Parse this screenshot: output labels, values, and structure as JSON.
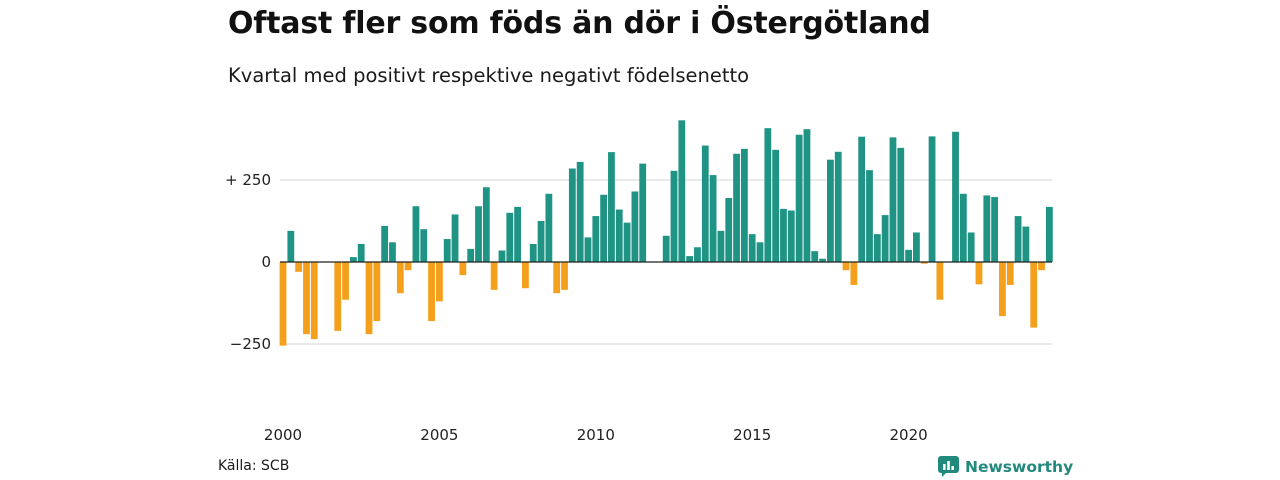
{
  "header": {
    "title": "Oftast fler som föds än dör i Östergötland",
    "subtitle": "Kvartal med positivt respektive negativt födelsenetto"
  },
  "footer": {
    "source": "Källa: SCB",
    "brand": "Newsworthy"
  },
  "colors": {
    "positive": "#1f9484",
    "negative": "#f5a01c",
    "grid": "#dddddd",
    "zero_line": "#222222",
    "brand": "#22897d"
  },
  "chart_data": {
    "type": "bar",
    "x_start": "2000-Q1",
    "values": [
      -255,
      95,
      -30,
      -220,
      -235,
      0,
      0,
      -210,
      -115,
      15,
      55,
      -220,
      -180,
      110,
      60,
      -95,
      -25,
      170,
      100,
      -180,
      -120,
      70,
      145,
      -40,
      40,
      170,
      228,
      -85,
      35,
      150,
      168,
      -80,
      55,
      125,
      208,
      -95,
      -85,
      285,
      305,
      75,
      140,
      205,
      335,
      160,
      120,
      215,
      300,
      0,
      0,
      80,
      278,
      432,
      18,
      45,
      355,
      265,
      95,
      195,
      330,
      345,
      85,
      60,
      408,
      342,
      162,
      157,
      388,
      405,
      33,
      10,
      312,
      336,
      -25,
      -70,
      382,
      280,
      85,
      143,
      380,
      348,
      37,
      90,
      -5,
      383,
      -115,
      0,
      397,
      208,
      90,
      -68,
      203,
      198,
      -165,
      -70,
      140,
      108,
      -200,
      -25,
      168
    ],
    "x_ticks": [
      "2000",
      "2005",
      "2010",
      "2015",
      "2020"
    ],
    "x_tick_positions": [
      2000,
      2005,
      2010,
      2015,
      2020
    ],
    "y_ticks": [
      "+ 250",
      "0",
      "−250"
    ],
    "y_tick_values": [
      250,
      0,
      -250
    ],
    "ylim": [
      -350,
      450
    ],
    "grid": true,
    "legend": "none"
  }
}
